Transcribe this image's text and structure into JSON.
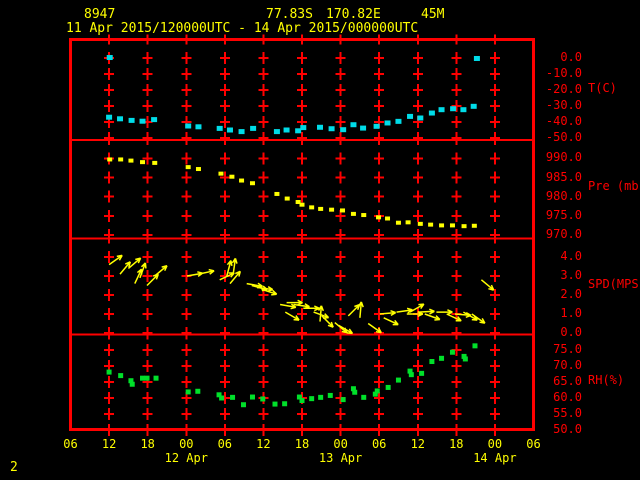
{
  "header": {
    "station_id": "8947",
    "latitude": "77.83S",
    "longitude": "170.82E",
    "elevation": "45M",
    "period": "11 Apr 2015/120000UTC - 14 Apr 2015/000000UTC"
  },
  "footer": {
    "page_number": "2"
  },
  "colors": {
    "background": "#000000",
    "frame": "#ff0000",
    "header_text": "#ffff00",
    "axis_text": "#ff0000",
    "temperature": "#00dce8",
    "pressure": "#ffff00",
    "wind": "#ffff00",
    "humidity": "#00e02a"
  },
  "chart_data": {
    "type": "scatter",
    "title": "11 Apr 2015/120000UTC - 14 Apr 2015/000000UTC",
    "x_axis": {
      "hours_span": 72,
      "tick_step_hours": 6,
      "tick_labels": [
        "06",
        "12",
        "18",
        "00",
        "06",
        "12",
        "18",
        "00",
        "06",
        "12",
        "18",
        "00",
        "06"
      ],
      "day_labels": [
        {
          "label": "12 Apr",
          "tick_index": 3
        },
        {
          "label": "13 Apr",
          "tick_index": 7
        },
        {
          "label": "14 Apr",
          "tick_index": 11
        }
      ]
    },
    "panels": [
      {
        "id": "temperature",
        "ylabel": "T(C)",
        "tick_labels": [
          "0.0",
          "-10.0",
          "-20.0",
          "-30.0",
          "-40.0",
          "-50.0"
        ],
        "tick_values": [
          0,
          -10,
          -20,
          -30,
          -40,
          -50
        ],
        "points": [
          {
            "h": 6.1,
            "v": 0.3
          },
          {
            "h": 63.2,
            "v": -0.3
          },
          {
            "h": 6.0,
            "v": -37
          },
          {
            "h": 7.7,
            "v": -38
          },
          {
            "h": 9.5,
            "v": -39
          },
          {
            "h": 11.2,
            "v": -39.5
          },
          {
            "h": 13.0,
            "v": -38.5
          },
          {
            "h": 18.3,
            "v": -42.5
          },
          {
            "h": 19.9,
            "v": -43
          },
          {
            "h": 23.2,
            "v": -44
          },
          {
            "h": 24.8,
            "v": -45
          },
          {
            "h": 26.6,
            "v": -46
          },
          {
            "h": 28.4,
            "v": -44
          },
          {
            "h": 32.1,
            "v": -46
          },
          {
            "h": 33.6,
            "v": -45
          },
          {
            "h": 35.4,
            "v": -45.5
          },
          {
            "h": 36.2,
            "v": -43.5
          },
          {
            "h": 38.8,
            "v": -43.3
          },
          {
            "h": 40.6,
            "v": -44.2
          },
          {
            "h": 42.4,
            "v": -44.8
          },
          {
            "h": 44.0,
            "v": -41.7
          },
          {
            "h": 45.5,
            "v": -43.8
          },
          {
            "h": 47.6,
            "v": -42.7
          },
          {
            "h": 49.3,
            "v": -40.6
          },
          {
            "h": 51.0,
            "v": -39.6
          },
          {
            "h": 52.8,
            "v": -36.5
          },
          {
            "h": 54.4,
            "v": -37.5
          },
          {
            "h": 56.2,
            "v": -34.4
          },
          {
            "h": 57.7,
            "v": -32.3
          },
          {
            "h": 59.5,
            "v": -31.7
          },
          {
            "h": 61.1,
            "v": -32.3
          },
          {
            "h": 62.7,
            "v": -30.2
          }
        ]
      },
      {
        "id": "pressure",
        "ylabel": "Pre (mb)",
        "tick_labels": [
          "990.0",
          "985.0",
          "980.0",
          "975.0",
          "970.0"
        ],
        "tick_values": [
          990,
          985,
          980,
          975,
          970
        ],
        "points": [
          {
            "h": 6.1,
            "v": 989.7
          },
          {
            "h": 7.8,
            "v": 989.7
          },
          {
            "h": 9.4,
            "v": 989.4
          },
          {
            "h": 11.2,
            "v": 989.0
          },
          {
            "h": 13.1,
            "v": 988.8
          },
          {
            "h": 18.3,
            "v": 987.7
          },
          {
            "h": 19.9,
            "v": 987.2
          },
          {
            "h": 23.4,
            "v": 986.0
          },
          {
            "h": 25.1,
            "v": 985.2
          },
          {
            "h": 26.6,
            "v": 984.2
          },
          {
            "h": 28.3,
            "v": 983.5
          },
          {
            "h": 32.1,
            "v": 980.7
          },
          {
            "h": 33.7,
            "v": 979.5
          },
          {
            "h": 35.4,
            "v": 978.6
          },
          {
            "h": 36.0,
            "v": 977.9
          },
          {
            "h": 37.5,
            "v": 977.2
          },
          {
            "h": 38.9,
            "v": 976.8
          },
          {
            "h": 40.6,
            "v": 976.6
          },
          {
            "h": 42.3,
            "v": 976.4
          },
          {
            "h": 44.0,
            "v": 975.5
          },
          {
            "h": 45.6,
            "v": 975.2
          },
          {
            "h": 47.9,
            "v": 974.6
          },
          {
            "h": 49.3,
            "v": 974.3
          },
          {
            "h": 51.0,
            "v": 973.2
          },
          {
            "h": 52.5,
            "v": 973.3
          },
          {
            "h": 54.4,
            "v": 972.9
          },
          {
            "h": 56.0,
            "v": 972.7
          },
          {
            "h": 57.7,
            "v": 972.5
          },
          {
            "h": 59.4,
            "v": 972.5
          },
          {
            "h": 61.2,
            "v": 972.3
          },
          {
            "h": 62.8,
            "v": 972.4
          }
        ]
      },
      {
        "id": "wind_speed",
        "ylabel": "SPD(MPS)",
        "tick_labels": [
          "4.0",
          "3.0",
          "2.0",
          "1.0",
          "0.0"
        ],
        "tick_values": [
          4,
          3,
          2,
          1,
          0
        ],
        "arrows": [
          {
            "h": 6.0,
            "v": 3.6,
            "dir": 35
          },
          {
            "h": 7.7,
            "v": 3.1,
            "dir": 50
          },
          {
            "h": 9.0,
            "v": 3.4,
            "dir": 40
          },
          {
            "h": 10.0,
            "v": 2.6,
            "dir": 65
          },
          {
            "h": 10.8,
            "v": 2.9,
            "dir": 70
          },
          {
            "h": 11.9,
            "v": 2.5,
            "dir": 45
          },
          {
            "h": 13.1,
            "v": 3.0,
            "dir": 40
          },
          {
            "h": 18.1,
            "v": 3.0,
            "dir": 10
          },
          {
            "h": 19.9,
            "v": 3.1,
            "dir": 12
          },
          {
            "h": 23.2,
            "v": 2.8,
            "dir": 25
          },
          {
            "h": 24.3,
            "v": 3.0,
            "dir": 75
          },
          {
            "h": 25.3,
            "v": 3.1,
            "dir": 82
          },
          {
            "h": 24.8,
            "v": 2.6,
            "dir": 50
          },
          {
            "h": 27.4,
            "v": 2.6,
            "dir": -10
          },
          {
            "h": 28.2,
            "v": 2.5,
            "dir": -15
          },
          {
            "h": 29.0,
            "v": 2.4,
            "dir": -8
          },
          {
            "h": 29.7,
            "v": 2.3,
            "dir": -18
          },
          {
            "h": 32.6,
            "v": 1.5,
            "dir": -10
          },
          {
            "h": 33.4,
            "v": 1.1,
            "dir": -30
          },
          {
            "h": 33.6,
            "v": 1.6,
            "dir": 0
          },
          {
            "h": 34.7,
            "v": 1.5,
            "dir": -8
          },
          {
            "h": 36.2,
            "v": 1.3,
            "dir": 0
          },
          {
            "h": 37.8,
            "v": 1.1,
            "dir": -20
          },
          {
            "h": 38.8,
            "v": 0.6,
            "dir": 85
          },
          {
            "h": 39.1,
            "v": 0.9,
            "dir": -45
          },
          {
            "h": 41.1,
            "v": 0.55,
            "dir": -40
          },
          {
            "h": 41.7,
            "v": 0.4,
            "dir": -30
          },
          {
            "h": 43.2,
            "v": 0.9,
            "dir": 45
          },
          {
            "h": 45.0,
            "v": 0.8,
            "dir": 85
          },
          {
            "h": 46.3,
            "v": 0.5,
            "dir": -35
          },
          {
            "h": 48.1,
            "v": 1.0,
            "dir": 5
          },
          {
            "h": 48.7,
            "v": 0.8,
            "dir": -25
          },
          {
            "h": 50.7,
            "v": 1.1,
            "dir": 8
          },
          {
            "h": 52.3,
            "v": 1.0,
            "dir": 0
          },
          {
            "h": 52.8,
            "v": 1.1,
            "dir": 30
          },
          {
            "h": 54.1,
            "v": 1.1,
            "dir": 3
          },
          {
            "h": 55.1,
            "v": 1.0,
            "dir": -20
          },
          {
            "h": 56.9,
            "v": 1.1,
            "dir": 0
          },
          {
            "h": 58.5,
            "v": 1.0,
            "dir": -25
          },
          {
            "h": 59.8,
            "v": 1.0,
            "dir": -5
          },
          {
            "h": 61.1,
            "v": 1.1,
            "dir": -30
          },
          {
            "h": 62.4,
            "v": 1.0,
            "dir": -35
          },
          {
            "h": 63.9,
            "v": 2.8,
            "dir": -40
          }
        ]
      },
      {
        "id": "humidity",
        "ylabel": "RH(%)",
        "tick_labels": [
          "75.0",
          "70.0",
          "65.0",
          "60.0",
          "55.0",
          "50.0"
        ],
        "tick_values": [
          75,
          70,
          65,
          60,
          55,
          50
        ],
        "points": [
          {
            "h": 6.0,
            "v": 68.1
          },
          {
            "h": 7.8,
            "v": 67.0
          },
          {
            "h": 9.4,
            "v": 65.4
          },
          {
            "h": 9.6,
            "v": 64.3
          },
          {
            "h": 11.2,
            "v": 66.2
          },
          {
            "h": 11.9,
            "v": 66.2
          },
          {
            "h": 13.3,
            "v": 66.2
          },
          {
            "h": 18.3,
            "v": 61.9
          },
          {
            "h": 19.8,
            "v": 62.1
          },
          {
            "h": 23.1,
            "v": 61.0
          },
          {
            "h": 23.5,
            "v": 60.0
          },
          {
            "h": 25.2,
            "v": 60.2
          },
          {
            "h": 26.9,
            "v": 57.9
          },
          {
            "h": 28.3,
            "v": 60.3
          },
          {
            "h": 29.9,
            "v": 59.7
          },
          {
            "h": 31.8,
            "v": 58.1
          },
          {
            "h": 33.3,
            "v": 58.2
          },
          {
            "h": 35.6,
            "v": 60.3
          },
          {
            "h": 36.0,
            "v": 59.2
          },
          {
            "h": 37.5,
            "v": 59.8
          },
          {
            "h": 38.9,
            "v": 60.2
          },
          {
            "h": 40.4,
            "v": 60.8
          },
          {
            "h": 42.4,
            "v": 59.5
          },
          {
            "h": 44.0,
            "v": 62.9
          },
          {
            "h": 44.2,
            "v": 61.8
          },
          {
            "h": 45.6,
            "v": 60.2
          },
          {
            "h": 47.4,
            "v": 61.2
          },
          {
            "h": 47.7,
            "v": 62.2
          },
          {
            "h": 49.4,
            "v": 63.3
          },
          {
            "h": 51.0,
            "v": 65.6
          },
          {
            "h": 52.8,
            "v": 68.4
          },
          {
            "h": 53.0,
            "v": 67.3
          },
          {
            "h": 54.6,
            "v": 67.7
          },
          {
            "h": 56.2,
            "v": 71.4
          },
          {
            "h": 57.7,
            "v": 72.4
          },
          {
            "h": 59.4,
            "v": 74.3
          },
          {
            "h": 61.2,
            "v": 73.0
          },
          {
            "h": 61.4,
            "v": 72.2
          },
          {
            "h": 62.9,
            "v": 76.3
          }
        ]
      }
    ]
  }
}
